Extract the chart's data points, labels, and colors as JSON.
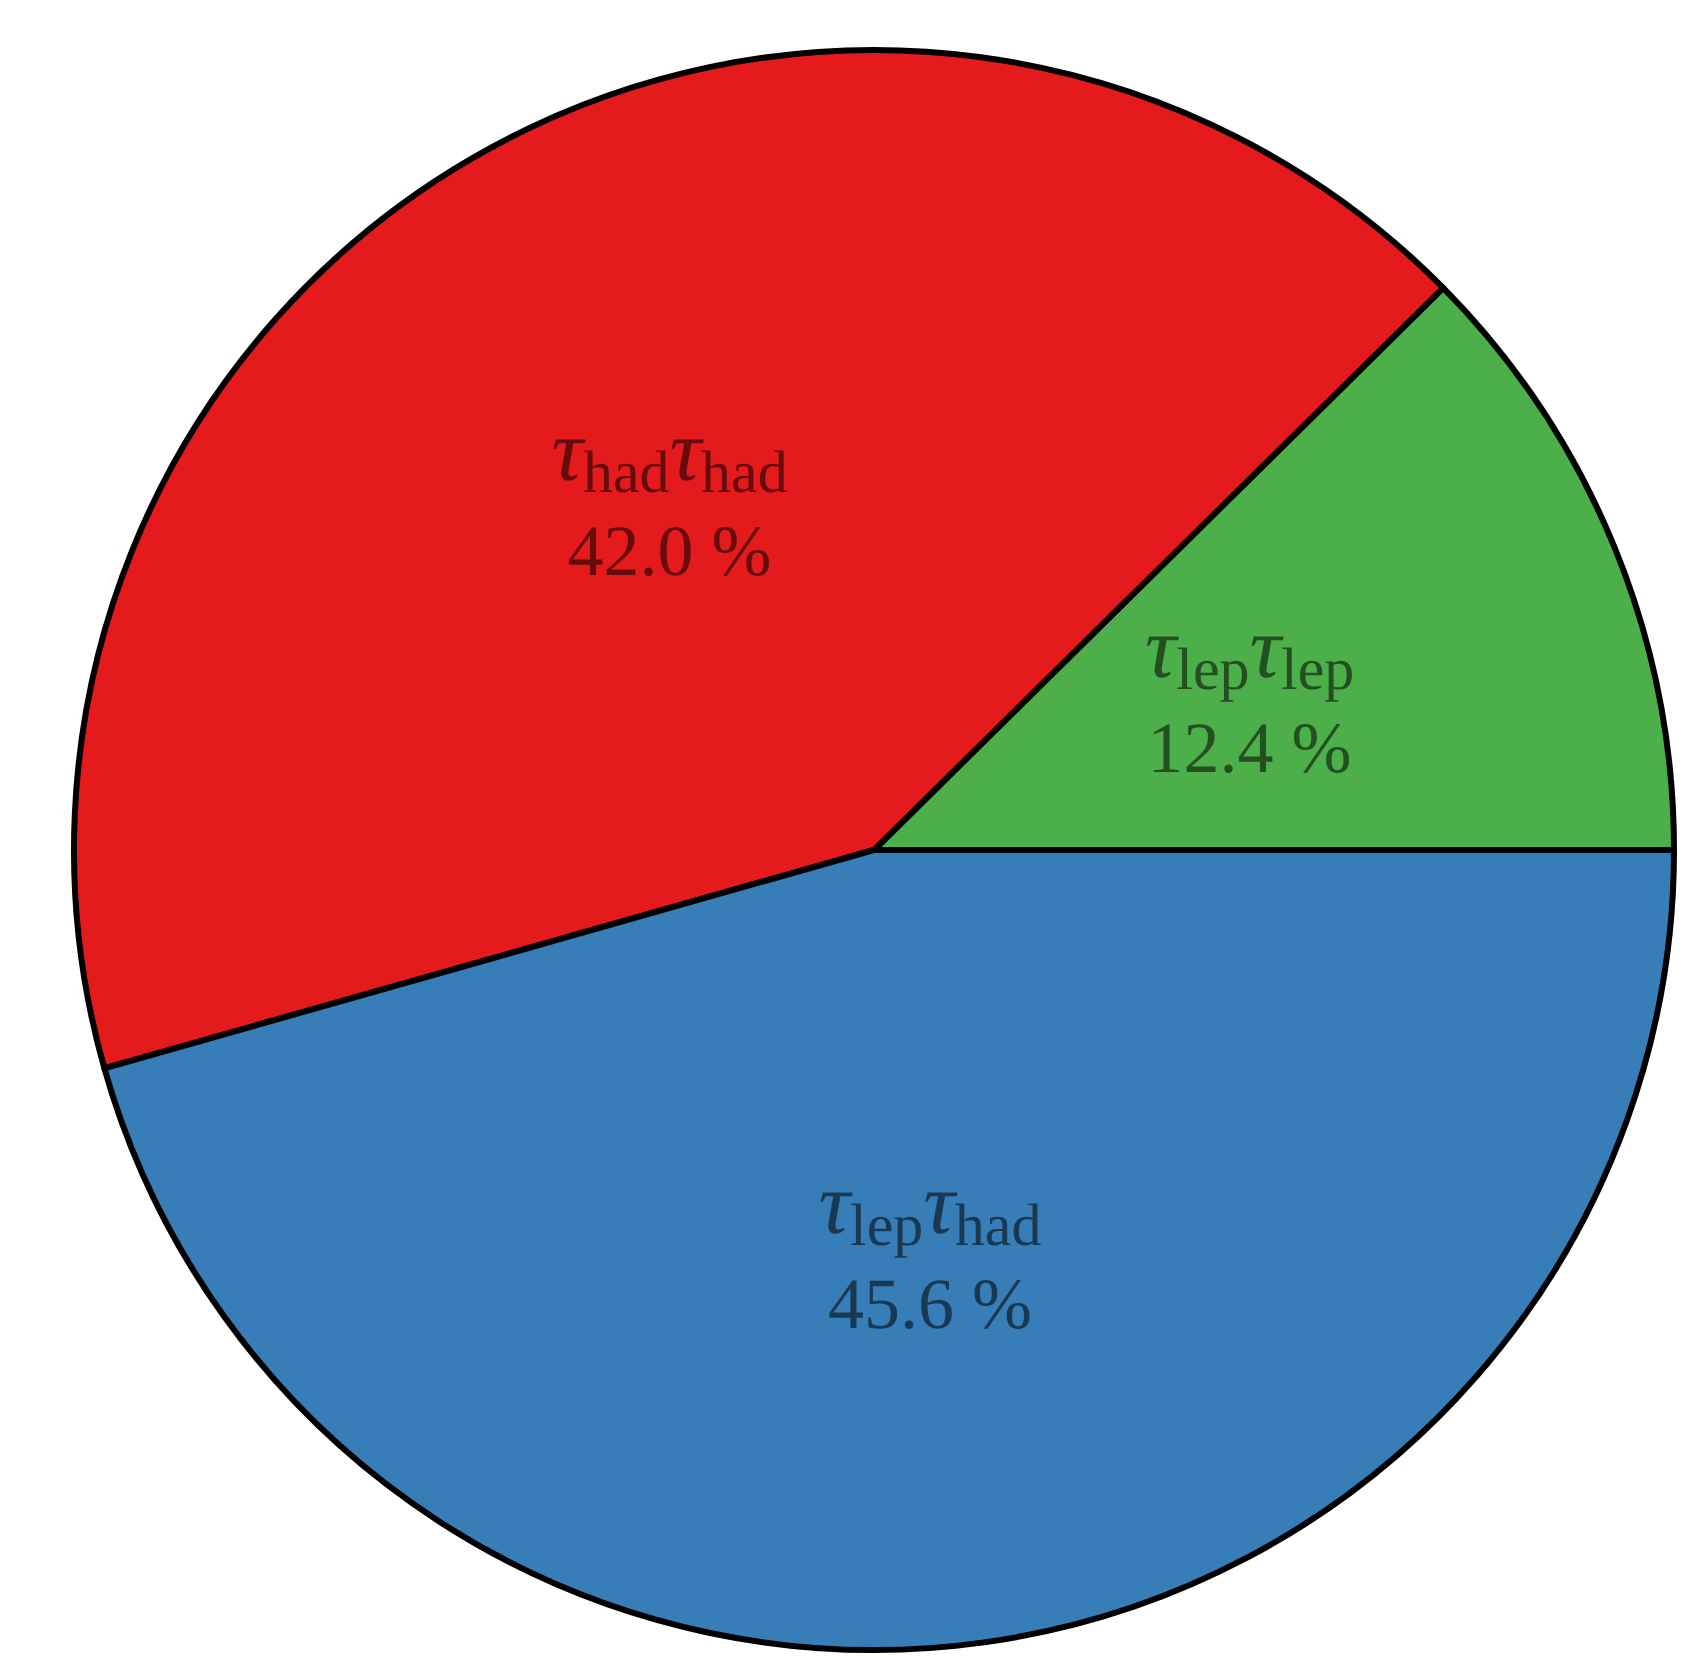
{
  "chart_data": {
    "type": "pie",
    "categories": [
      "τ$_{lep}$τ$_{lep}$",
      "τ$_{had}$τ$_{had}$",
      "τ$_{lep}$τ$_{had}$"
    ],
    "values": [
      12.4,
      42.0,
      45.6
    ],
    "value_labels": [
      "12.4 %",
      "42.0 %",
      "45.6 %"
    ],
    "colors": [
      "#4daf4a",
      "#e41a1c",
      "#377eb8"
    ]
  }
}
